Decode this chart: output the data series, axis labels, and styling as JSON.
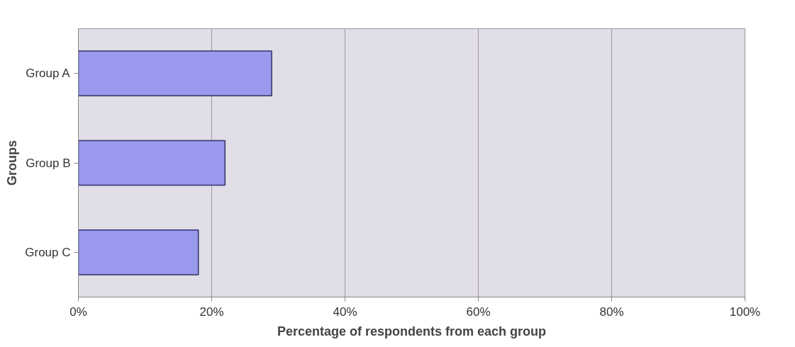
{
  "chart_data": {
    "type": "bar",
    "orientation": "horizontal",
    "categories": [
      "Group A",
      "Group B",
      "Group C"
    ],
    "values": [
      29,
      22,
      18
    ],
    "color": "#9999ee",
    "xlabel": "Percentage of respondents from each group",
    "ylabel": "Groups",
    "xlim": [
      0,
      100
    ],
    "xticks": [
      {
        "value": 0,
        "label": "0%"
      },
      {
        "value": 20,
        "label": "20%"
      },
      {
        "value": 40,
        "label": "40%"
      },
      {
        "value": 60,
        "label": "60%"
      },
      {
        "value": 80,
        "label": "80%"
      },
      {
        "value": 100,
        "label": "100%"
      }
    ],
    "grid": "x"
  }
}
